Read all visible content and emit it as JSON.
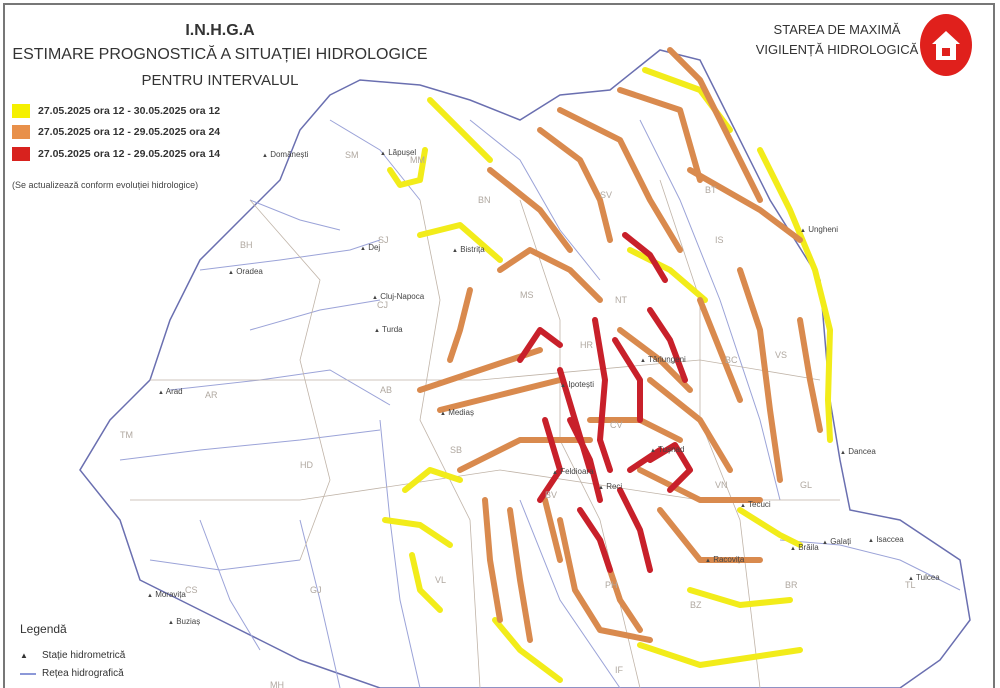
{
  "header": {
    "org": "I.N.H.G.A",
    "title": "ESTIMARE PROGNOSTICĂ A SITUAȚIEI HIDROLOGICE",
    "subtitle": "PENTRU INTERVALUL",
    "intervals": [
      {
        "label": "27.05.2025 ora 12 - 30.05.2025 ora 12",
        "color": "#f5f000"
      },
      {
        "label": "27.05.2025 ora 12 - 29.05.2025 ora 24",
        "color": "#e8904a"
      },
      {
        "label": "27.05.2025 ora 12 - 29.05.2025 ora 14",
        "color": "#d8221e"
      }
    ],
    "note": "(Se actualizează conform evoluției hidrologice)"
  },
  "vigilance": {
    "line1": "STAREA DE MAXIMĂ",
    "line2": "VIGILENȚĂ HIDROLOGICĂ",
    "icon": "house-icon",
    "color": "#e0201c"
  },
  "legend": {
    "title": "Legendă",
    "items": [
      {
        "label": "Stație hidrometrică",
        "icon": "triangle-icon"
      },
      {
        "label": "Rețea hidrografică",
        "icon": "line-icon"
      }
    ]
  },
  "counties": [
    "SM",
    "MM",
    "BN",
    "SV",
    "BT",
    "IS",
    "NT",
    "BC",
    "VS",
    "MS",
    "HR",
    "CV",
    "CJ",
    "SJ",
    "BH",
    "AR",
    "TM",
    "AB",
    "HD",
    "SB",
    "BV",
    "VN",
    "GL",
    "BR",
    "BZ",
    "PH",
    "CS",
    "GJ",
    "VL",
    "TL",
    "IF",
    "MH"
  ],
  "places": [
    "Dej",
    "Cluj-Napoca",
    "Oradea",
    "Arad",
    "Bistrița",
    "Mediaș",
    "Brăila",
    "Galați",
    "Tulcea",
    "Isaccea",
    "Dancea",
    "Ungheni",
    "Turda",
    "Domănești",
    "Lăpușel",
    "Tărlungeni",
    "Feldioara",
    "Reci",
    "Racovița",
    "Tecuci",
    "Moravița",
    "Buziaș",
    "Tuşnad",
    "Ipotești"
  ]
}
